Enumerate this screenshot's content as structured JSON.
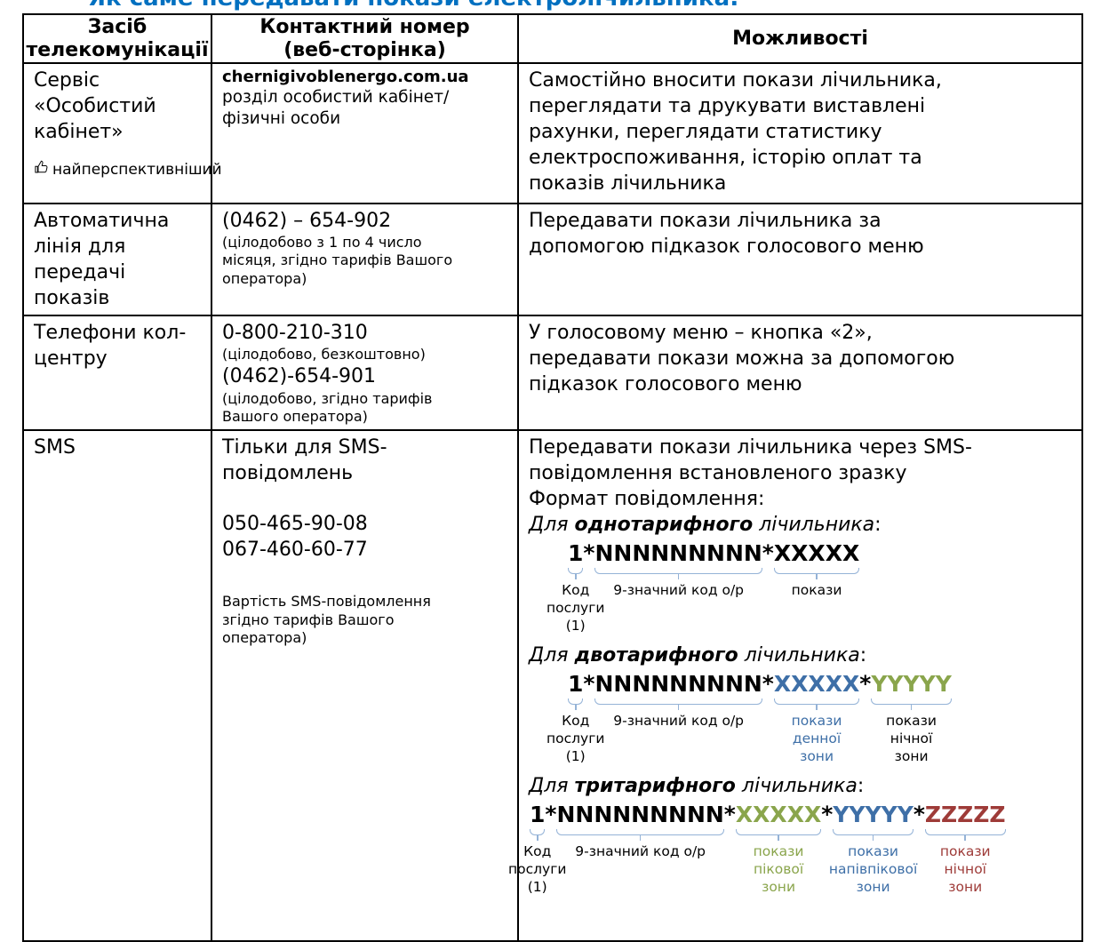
{
  "page_title": "Як саме передавати покази електролічильника:",
  "colors": {
    "title": "#0070C0",
    "black": "#000000",
    "blue": "#3E6FA7",
    "green": "#8AA54C",
    "dark_red": "#9E3B38",
    "brace": "#95B3D7"
  },
  "table": {
    "headers": [
      [
        "Засіб",
        "телекомунікації"
      ],
      [
        "Контактний номер",
        "(веб-сторінка)"
      ],
      [
        "Можливості"
      ]
    ],
    "rows": [
      {
        "method": [
          "Сервіс",
          "«Особистий",
          "кабінет»"
        ],
        "method_note": "найперспективніший",
        "method_note_icon": "thumbs-up-icon",
        "contact_bold": "chernigivoblenergo.com.ua",
        "contact_note": [
          "розділ особистий кабінет/",
          "фізичні особи"
        ],
        "features": [
          "Самостійно вносити покази лічильника,",
          "переглядати та друкувати виставлені",
          "рахунки, переглядати статистику",
          "електроспоживання, історію оплат та",
          "показів лічильника"
        ]
      },
      {
        "method": [
          "Автоматична",
          "лінія для",
          "передачі показів"
        ],
        "phone": "(0462) – 654-902",
        "phone_note": [
          "(цілодобово з 1 по 4 число",
          "місяця, згідно тарифів Вашого",
          "оператора)"
        ],
        "features": [
          "Передавати покази лічильника за",
          "допомогою підказок голосового меню"
        ]
      },
      {
        "method": [
          "Телефони кол-",
          "центру"
        ],
        "phone1": "0-800-210-310",
        "phone1_note": "(цілодобово, безкоштовно)",
        "phone2": "(0462)-654-901",
        "phone2_note": [
          "(цілодобово, згідно тарифів",
          "Вашого оператора)"
        ],
        "features": [
          "У голосовому меню – кнопка «2»,",
          "передавати покази можна за допомогою",
          "підказок голосового меню"
        ]
      },
      {
        "method": "SMS",
        "contact_main": [
          "Тільки для SMS-",
          "повідомлень"
        ],
        "contact_numbers": [
          "050-465-90-08",
          "067-460-60-77"
        ],
        "contact_note": [
          "Вартість SMS-повідомлення",
          "згідно тарифів Вашого",
          "оператора)"
        ],
        "features_intro": [
          "Передавати покази лічильника через SMS-",
          "повідомлення встановленого зразку",
          "Формат повідомлення:"
        ],
        "diagrams": [
          {
            "heading": {
              "prefix": "Для ",
              "emph": "однотарифного",
              "suffix": " лічильника",
              "colon": ":"
            },
            "segments": [
              {
                "text": "1",
                "color": "black",
                "brace": true,
                "label": {
                  "lines": [
                    "Код",
                    "послуги",
                    "(1)"
                  ],
                  "color": "black"
                }
              },
              {
                "text": "*",
                "color": "black"
              },
              {
                "text": "NNNNNNNNN",
                "color": "black",
                "brace": true,
                "label": {
                  "lines": [
                    "9-значний код о/р"
                  ],
                  "color": "black"
                }
              },
              {
                "text": "*",
                "color": "black"
              },
              {
                "text": "XXXXX",
                "color": "black",
                "brace": true,
                "label": {
                  "lines": [
                    "покази"
                  ],
                  "color": "black"
                }
              }
            ]
          },
          {
            "heading": {
              "prefix": "Для ",
              "emph": "двотарифного",
              "suffix": " лічильника",
              "colon": ":"
            },
            "segments": [
              {
                "text": "1",
                "color": "black",
                "brace": true,
                "label": {
                  "lines": [
                    "Код",
                    "послуги",
                    "(1)"
                  ],
                  "color": "black"
                }
              },
              {
                "text": "*",
                "color": "black"
              },
              {
                "text": "NNNNNNNNN",
                "color": "black",
                "brace": true,
                "label": {
                  "lines": [
                    "9-значний код о/р"
                  ],
                  "color": "black"
                }
              },
              {
                "text": "*",
                "color": "black"
              },
              {
                "text": "XXXXX",
                "color": "blue",
                "brace": true,
                "label": {
                  "lines": [
                    "покази",
                    "денної",
                    "зони"
                  ],
                  "color": "blue"
                }
              },
              {
                "text": "*",
                "color": "black"
              },
              {
                "text": "YYYYY",
                "color": "green",
                "brace": true,
                "label": {
                  "lines": [
                    "покази",
                    "нічної",
                    "зони"
                  ],
                  "color": "black"
                }
              }
            ]
          },
          {
            "heading": {
              "prefix": "Для ",
              "emph": "тритарифного",
              "suffix": " лічильника",
              "colon": ":"
            },
            "segments": [
              {
                "text": "1",
                "color": "black",
                "brace": true,
                "label": {
                  "lines": [
                    "Код",
                    "послуги",
                    "(1)"
                  ],
                  "color": "black"
                }
              },
              {
                "text": "*",
                "color": "black"
              },
              {
                "text": "NNNNNNNNN",
                "color": "black",
                "brace": true,
                "label": {
                  "lines": [
                    "9-значний код о/р"
                  ],
                  "color": "black"
                }
              },
              {
                "text": "*",
                "color": "black"
              },
              {
                "text": "XXXXX",
                "color": "green",
                "brace": true,
                "label": {
                  "lines": [
                    "покази",
                    "пікової",
                    "зони"
                  ],
                  "color": "green"
                }
              },
              {
                "text": "*",
                "color": "black"
              },
              {
                "text": "YYYYY",
                "color": "blue",
                "brace": true,
                "label": {
                  "lines": [
                    "покази",
                    "напівпікової",
                    "зони"
                  ],
                  "color": "blue"
                }
              },
              {
                "text": "*",
                "color": "black"
              },
              {
                "text": "ZZZZZ",
                "color": "dark_red",
                "brace": true,
                "label": {
                  "lines": [
                    "покази",
                    "нічної",
                    "зони"
                  ],
                  "color": "dark_red"
                }
              }
            ]
          }
        ]
      }
    ]
  }
}
